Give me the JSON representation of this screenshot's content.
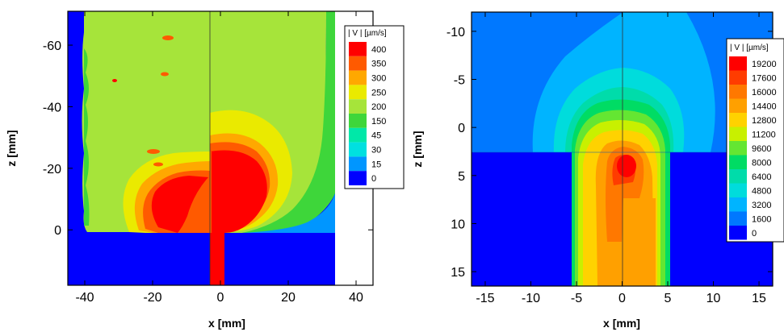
{
  "chart_data": [
    {
      "type": "heatmap",
      "title": "",
      "xlabel": "x [mm]",
      "ylabel": "z [mm]",
      "xlim": [
        -45,
        45
      ],
      "ylim": [
        -71,
        18
      ],
      "y_axis_inverted": true,
      "x_ticks": [
        "-40",
        "-20",
        "0",
        "20",
        "40"
      ],
      "x_tick_values": [
        -40,
        -20,
        0,
        20,
        40
      ],
      "y_ticks": [
        "-60",
        "-40",
        "-20",
        "0"
      ],
      "y_tick_values": [
        -60,
        -40,
        -20,
        0
      ],
      "legend_title": "| V | [µm/s]",
      "legend_placement": "top-right",
      "levels": [
        "400",
        "350",
        "300",
        "250",
        "200",
        "150",
        "45",
        "30",
        "15",
        "0"
      ],
      "level_colors": [
        "#ff0000",
        "#ff5a00",
        "#ffa800",
        "#eaea00",
        "#a6e43a",
        "#3ed63a",
        "#00e8a8",
        "#00e0e0",
        "#0096ff",
        "#0000ff"
      ]
    },
    {
      "type": "heatmap",
      "title": "",
      "xlabel": "x [mm]",
      "ylabel": "z [mm]",
      "xlim": [
        -16.5,
        16.5
      ],
      "ylim": [
        -12,
        16.5
      ],
      "y_axis_inverted": true,
      "x_ticks": [
        "-15",
        "-10",
        "-5",
        "0",
        "5",
        "10",
        "15"
      ],
      "x_tick_values": [
        -15,
        -10,
        -5,
        0,
        5,
        10,
        15
      ],
      "y_ticks": [
        "-10",
        "-5",
        "0",
        "5",
        "10",
        "15"
      ],
      "y_tick_values": [
        -10,
        -5,
        0,
        5,
        10,
        15
      ],
      "legend_title": "| V | [µm/s]",
      "legend_placement": "top-right",
      "levels": [
        "19200",
        "17600",
        "16000",
        "14400",
        "12800",
        "11200",
        "9600",
        "8000",
        "6400",
        "4800",
        "3200",
        "1600",
        "0"
      ],
      "level_colors": [
        "#ff0000",
        "#ff3c00",
        "#ff7800",
        "#ffa000",
        "#ffd200",
        "#c8f000",
        "#64e632",
        "#00dc64",
        "#00dcaa",
        "#00dcdc",
        "#00b4ff",
        "#0078ff",
        "#0000ff"
      ]
    }
  ]
}
